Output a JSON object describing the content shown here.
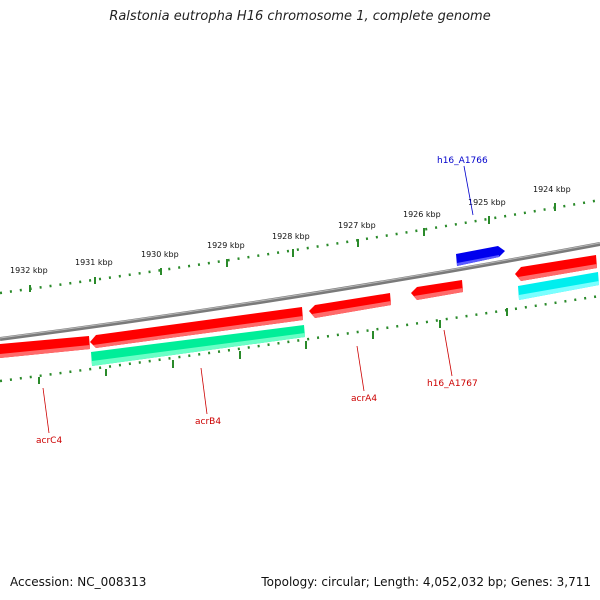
{
  "title": "Ralstonia eutropha H16 chromosome 1, complete genome",
  "footer": {
    "accession": "Accession: NC_008313",
    "stats": "Topology: circular; Length: 4,052,032 bp; Genes: 3,711"
  },
  "scale_labels": [
    "1924 kbp",
    "1925 kbp",
    "1926 kbp",
    "1927 kbp",
    "1928 kbp",
    "1929 kbp",
    "1930 kbp",
    "1931 kbp",
    "1932 kbp"
  ],
  "genes": [
    {
      "name": "h16_A1766",
      "strand": "+",
      "color": "#0000ee",
      "label_color": "#0000cc"
    },
    {
      "name": "h16_A1767",
      "strand": "-",
      "color": "#ff0000",
      "label_color": "#cc0000"
    },
    {
      "name": "acrA4",
      "strand": "-",
      "color": "#ff0000",
      "label_color": "#cc0000"
    },
    {
      "name": "acrB4",
      "strand": "-",
      "color": "#ff0000",
      "label_color": "#cc0000"
    },
    {
      "name": "acrC4",
      "strand": "-",
      "color": "#ff0000",
      "label_color": "#cc0000"
    }
  ],
  "colors": {
    "backbone": "#7a7a7a",
    "scale": "#2a8a2a",
    "cds_minus": "#ff0000",
    "cds_plus": "#0000ee",
    "feature_cyan": "#00eeee",
    "feature_green": "#00ee99"
  }
}
